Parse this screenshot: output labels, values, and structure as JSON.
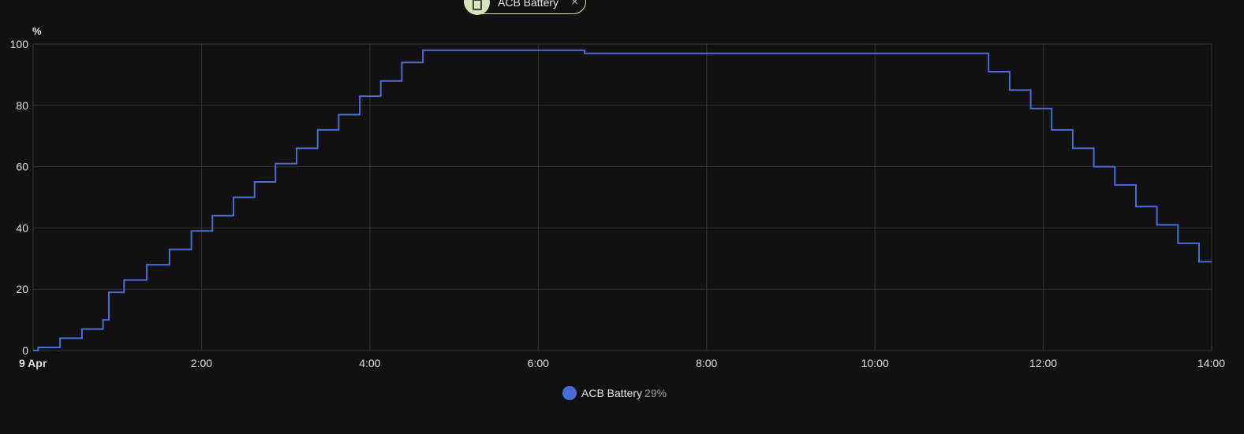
{
  "filter_chip": {
    "label": "ACB Battery",
    "icon": "battery-icon",
    "close_symbol": "×",
    "accent_color": "#d7e3b9"
  },
  "chart_data": {
    "type": "line",
    "step": true,
    "unit_label": "%",
    "ylim": [
      0,
      100
    ],
    "yticks": [
      0,
      20,
      40,
      60,
      80,
      100
    ],
    "xlim": [
      0,
      14
    ],
    "xticks": [
      {
        "value": 0,
        "label": "9 Apr",
        "bold": true
      },
      {
        "value": 2,
        "label": "2:00"
      },
      {
        "value": 4,
        "label": "4:00"
      },
      {
        "value": 6,
        "label": "6:00"
      },
      {
        "value": 8,
        "label": "8:00"
      },
      {
        "value": 10,
        "label": "10:00"
      },
      {
        "value": 12,
        "label": "12:00"
      },
      {
        "value": 14,
        "label": "14:00"
      }
    ],
    "grid": true,
    "series": [
      {
        "name": "ACB Battery",
        "color": "#4a6bd8",
        "x": [
          0,
          0.06,
          0.32,
          0.58,
          0.83,
          0.9,
          1.08,
          1.35,
          1.62,
          1.88,
          2.13,
          2.38,
          2.63,
          2.88,
          3.13,
          3.38,
          3.63,
          3.88,
          4.13,
          4.38,
          4.63,
          6.55,
          11.35,
          11.6,
          11.85,
          12.1,
          12.35,
          12.6,
          12.85,
          13.1,
          13.35,
          13.6,
          13.85,
          14.0
        ],
        "y": [
          0,
          1,
          4,
          7,
          10,
          19,
          23,
          28,
          33,
          39,
          44,
          50,
          55,
          61,
          66,
          72,
          77,
          83,
          88,
          94,
          98,
          97,
          91,
          85,
          79,
          72,
          66,
          60,
          54,
          47,
          41,
          35,
          29,
          29
        ]
      }
    ]
  },
  "legend": {
    "name": "ACB Battery",
    "value": "29%",
    "color": "#4a6bd8"
  }
}
